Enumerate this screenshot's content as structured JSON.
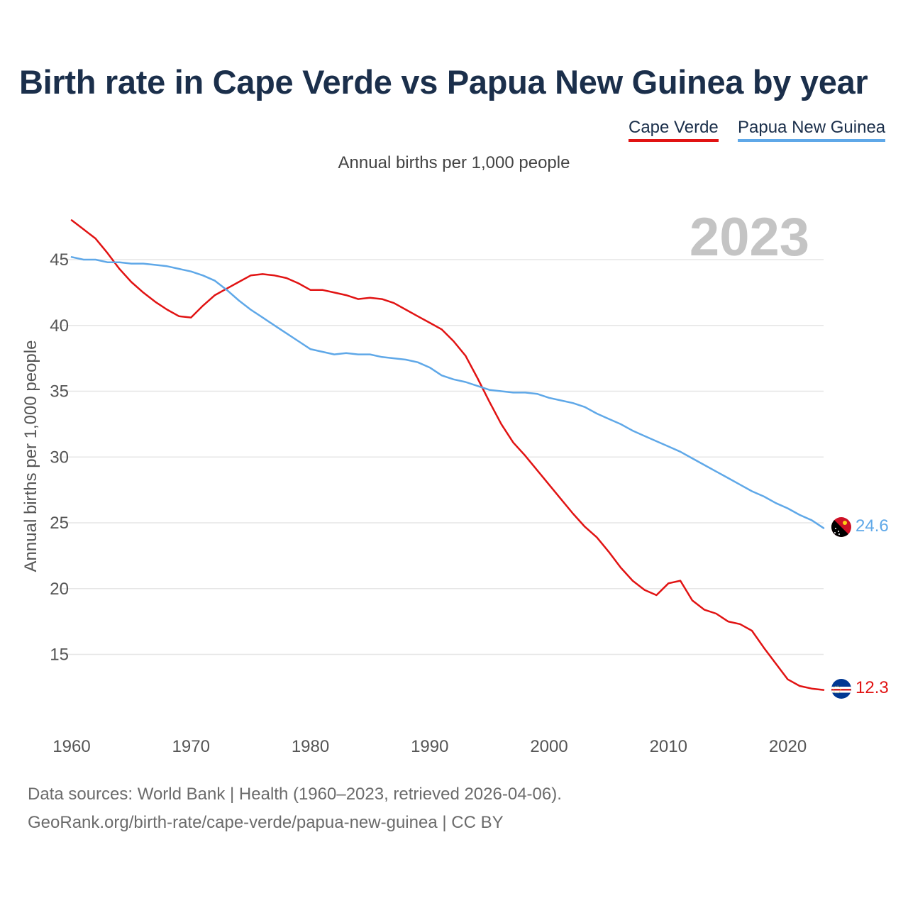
{
  "chart_data": {
    "type": "line",
    "title": "Birth rate in Cape Verde vs Papua New Guinea by year",
    "subtitle": "Annual births per 1,000 people",
    "ylabel": "Annual births per 1,000 people",
    "xlabel": "",
    "year_label": "2023",
    "xlim": [
      1960,
      2023
    ],
    "ylim": [
      10,
      48
    ],
    "grid": true,
    "x_ticks": [
      1960,
      1970,
      1980,
      1990,
      2000,
      2010,
      2020
    ],
    "y_ticks": [
      15,
      20,
      25,
      30,
      35,
      40,
      45
    ],
    "legend_position": "top-right",
    "x": [
      1960,
      1961,
      1962,
      1963,
      1964,
      1965,
      1966,
      1967,
      1968,
      1969,
      1970,
      1971,
      1972,
      1973,
      1974,
      1975,
      1976,
      1977,
      1978,
      1979,
      1980,
      1981,
      1982,
      1983,
      1984,
      1985,
      1986,
      1987,
      1988,
      1989,
      1990,
      1991,
      1992,
      1993,
      1994,
      1995,
      1996,
      1997,
      1998,
      1999,
      2000,
      2001,
      2002,
      2003,
      2004,
      2005,
      2006,
      2007,
      2008,
      2009,
      2010,
      2011,
      2012,
      2013,
      2014,
      2015,
      2016,
      2017,
      2018,
      2019,
      2020,
      2021,
      2022,
      2023
    ],
    "series": [
      {
        "name": "Cape Verde",
        "color": "#e11313",
        "end_label": "12.3",
        "flag": "cape-verde-flag-icon",
        "values": [
          48.0,
          47.3,
          46.6,
          45.5,
          44.3,
          43.3,
          42.5,
          41.8,
          41.2,
          40.7,
          40.6,
          41.5,
          42.3,
          42.8,
          43.3,
          43.8,
          43.9,
          43.8,
          43.6,
          43.2,
          42.7,
          42.7,
          42.5,
          42.3,
          42.0,
          42.1,
          42.0,
          41.7,
          41.2,
          40.7,
          40.2,
          39.7,
          38.8,
          37.7,
          36.0,
          34.2,
          32.5,
          31.1,
          30.1,
          29.0,
          27.9,
          26.8,
          25.7,
          24.7,
          23.9,
          22.8,
          21.6,
          20.6,
          19.9,
          19.5,
          20.4,
          20.6,
          19.1,
          18.4,
          18.1,
          17.5,
          17.3,
          16.8,
          15.5,
          14.3,
          13.1,
          12.6,
          12.4,
          12.3
        ]
      },
      {
        "name": "Papua New Guinea",
        "color": "#5fa8e8",
        "end_label": "24.6",
        "flag": "papua-new-guinea-flag-icon",
        "values": [
          45.2,
          45.0,
          45.0,
          44.8,
          44.8,
          44.7,
          44.7,
          44.6,
          44.5,
          44.3,
          44.1,
          43.8,
          43.4,
          42.7,
          41.9,
          41.2,
          40.6,
          40.0,
          39.4,
          38.8,
          38.2,
          38.0,
          37.8,
          37.9,
          37.8,
          37.8,
          37.6,
          37.5,
          37.4,
          37.2,
          36.8,
          36.2,
          35.9,
          35.7,
          35.4,
          35.1,
          35.0,
          34.9,
          34.9,
          34.8,
          34.5,
          34.3,
          34.1,
          33.8,
          33.3,
          32.9,
          32.5,
          32.0,
          31.6,
          31.2,
          30.8,
          30.4,
          29.9,
          29.4,
          28.9,
          28.4,
          27.9,
          27.4,
          27.0,
          26.5,
          26.1,
          25.6,
          25.2,
          24.6
        ]
      }
    ]
  },
  "footer": {
    "source": "Data sources: World Bank | Health (1960–2023, retrieved 2026-04-06).",
    "credit": "GeoRank.org/birth-rate/cape-verde/papua-new-guinea | CC BY"
  }
}
